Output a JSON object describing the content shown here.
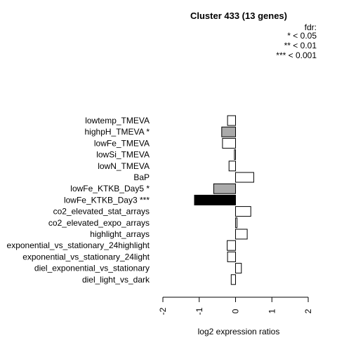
{
  "chart_data": {
    "type": "bar",
    "orientation": "horizontal",
    "title": "Cluster 433 (13 genes)",
    "xlabel": "log2 expression ratios",
    "ylabel": "",
    "xlim": [
      -2,
      2
    ],
    "x_ticks": [
      "-2",
      "-1",
      "0",
      "1",
      "2"
    ],
    "legend": {
      "title": "fdr:",
      "entries": [
        "* < 0.05",
        "** < 0.01",
        "*** < 0.001"
      ],
      "placement": "top-right"
    },
    "categories": [
      "lowtemp_TMEVA",
      "highpH_TMEVA *",
      "lowFe_TMEVA",
      "lowSi_TMEVA",
      "lowN_TMEVA",
      "BaP",
      "lowFe_KTKB_Day5 *",
      "lowFe_KTKB_Day3 ***",
      "co2_elevated_stat_arrays",
      "co2_elevated_expo_arrays",
      "highlight_arrays",
      "exponential_vs_stationary_24highlight",
      "exponential_vs_stationary_24light",
      "diel_exponential_vs_stationary",
      "diel_light_vs_dark"
    ],
    "values": [
      -0.22,
      -0.38,
      -0.36,
      -0.03,
      -0.18,
      0.5,
      -0.6,
      -1.13,
      0.42,
      0.04,
      0.32,
      -0.23,
      -0.22,
      0.16,
      -0.12
    ],
    "fills": [
      "#ffffff",
      "#aaaaaa",
      "#ffffff",
      "#ffffff",
      "#ffffff",
      "#ffffff",
      "#aaaaaa",
      "#000000",
      "#ffffff",
      "#ffffff",
      "#ffffff",
      "#ffffff",
      "#ffffff",
      "#ffffff",
      "#ffffff"
    ],
    "grid": false
  }
}
